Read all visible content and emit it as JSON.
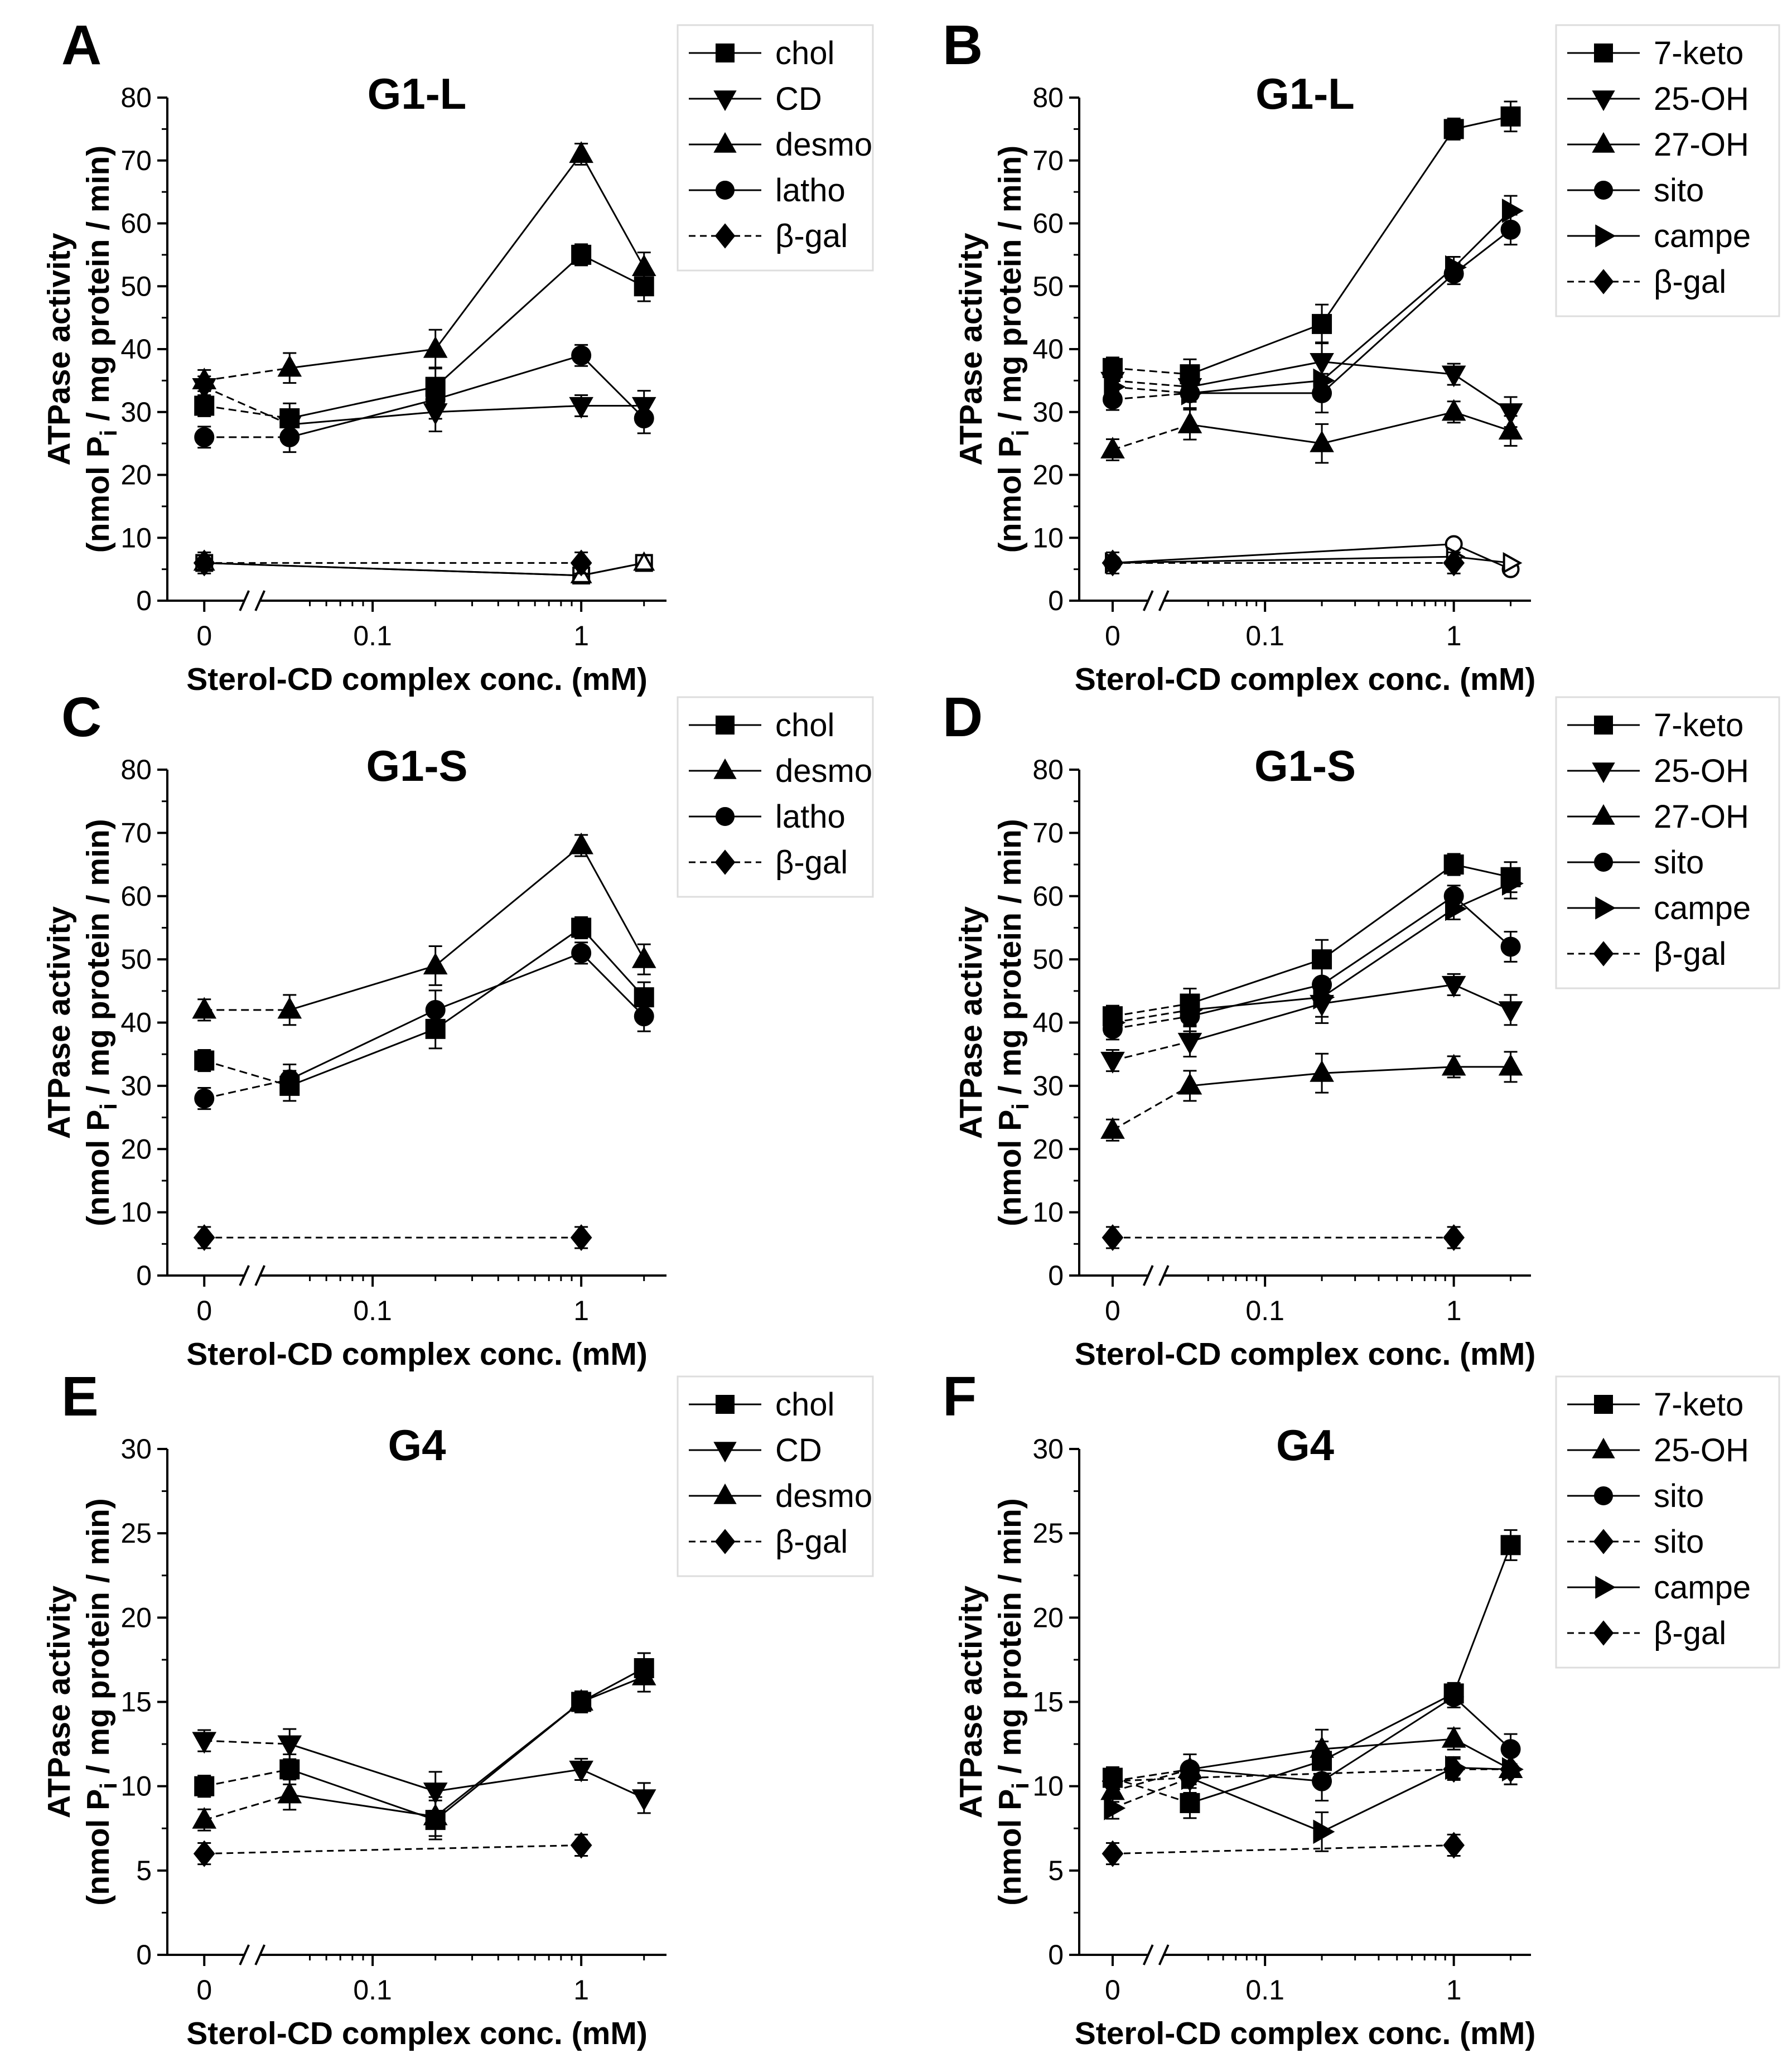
{
  "chart_data": [
    {
      "panel": "A",
      "type": "line",
      "title": "G1-L",
      "xlabel": "Sterol-CD complex  conc. (mM)",
      "ylabel_line1": "ATPase activity",
      "ylabel_line2a": "(nmol P",
      "ylabel_sub": "i",
      "ylabel_line2b": " / mg protein / min)",
      "x_scale": "log with axis break; 0 plotted left of break",
      "x": [
        0,
        0.04,
        0.2,
        1,
        2
      ],
      "x_ticks": [
        "0",
        "0.1",
        "1"
      ],
      "ylim": [
        0,
        80
      ],
      "y_ticks": [
        "0",
        "10",
        "20",
        "30",
        "40",
        "50",
        "60",
        "70",
        "80"
      ],
      "series": [
        {
          "name": "chol",
          "marker": "square",
          "values": [
            31,
            29,
            34,
            55,
            50
          ],
          "dash_first": true
        },
        {
          "name": "CD",
          "marker": "triangle-down",
          "values": [
            34,
            28,
            30,
            31,
            31
          ],
          "dash_first": true
        },
        {
          "name": "desmo",
          "marker": "triangle-up",
          "values": [
            35,
            37,
            40,
            71,
            53
          ],
          "dash_first": true
        },
        {
          "name": "latho",
          "marker": "circle",
          "values": [
            26,
            26,
            32,
            39,
            29
          ],
          "dash_first": true
        },
        {
          "name": "β-gal",
          "marker": "diamond",
          "values": [
            6,
            null,
            null,
            6,
            null
          ],
          "dashed": true
        }
      ],
      "open_values": [
        {
          "marker": "square",
          "values": [
            6,
            null,
            null,
            4,
            6
          ]
        },
        {
          "marker": "triangle-up",
          "values": [
            6,
            null,
            null,
            4,
            6
          ]
        }
      ]
    },
    {
      "panel": "B",
      "type": "line",
      "title": "G1-L",
      "xlabel": "Sterol-CD complex  conc. (mM)",
      "ylabel_line1": "ATPase activity",
      "ylabel_line2a": "(nmol P",
      "ylabel_sub": "i",
      "ylabel_line2b": " / mg protein / min)",
      "x": [
        0,
        0.04,
        0.2,
        1,
        2
      ],
      "x_ticks": [
        "0",
        "0.1",
        "1"
      ],
      "ylim": [
        0,
        80
      ],
      "y_ticks": [
        "0",
        "10",
        "20",
        "30",
        "40",
        "50",
        "60",
        "70",
        "80"
      ],
      "series": [
        {
          "name": "7-keto",
          "marker": "square",
          "values": [
            37,
            36,
            44,
            75,
            77
          ],
          "dash_first": true
        },
        {
          "name": "25-OH",
          "marker": "triangle-down",
          "values": [
            35,
            34,
            38,
            36,
            30
          ],
          "dash_first": true
        },
        {
          "name": "27-OH",
          "marker": "triangle-up",
          "values": [
            24,
            28,
            25,
            30,
            27
          ],
          "dash_first": true
        },
        {
          "name": "sito",
          "marker": "circle",
          "values": [
            32,
            33,
            33,
            52,
            59
          ],
          "dash_first": true
        },
        {
          "name": "campe",
          "marker": "triangle-right",
          "values": [
            34,
            33,
            35,
            53,
            62
          ],
          "dash_first": true
        },
        {
          "name": "β-gal",
          "marker": "diamond",
          "values": [
            6,
            null,
            null,
            6,
            null
          ],
          "dashed": true
        }
      ],
      "open_values": [
        {
          "marker": "circle",
          "values": [
            6,
            null,
            null,
            9,
            5
          ]
        },
        {
          "marker": "triangle-right",
          "values": [
            6,
            null,
            null,
            7,
            6
          ]
        }
      ]
    },
    {
      "panel": "C",
      "type": "line",
      "title": "G1-S",
      "xlabel": "Sterol-CD complex  conc. (mM)",
      "ylabel_line1": "ATPase activity",
      "ylabel_line2a": "(nmol P",
      "ylabel_sub": "i",
      "ylabel_line2b": " / mg protein / min)",
      "x": [
        0,
        0.04,
        0.2,
        1,
        2
      ],
      "x_ticks": [
        "0",
        "0.1",
        "1"
      ],
      "ylim": [
        0,
        80
      ],
      "y_ticks": [
        "0",
        "10",
        "20",
        "30",
        "40",
        "50",
        "60",
        "70",
        "80"
      ],
      "series": [
        {
          "name": "chol",
          "marker": "square",
          "values": [
            34,
            30,
            39,
            55,
            44
          ],
          "dash_first": true
        },
        {
          "name": "desmo",
          "marker": "triangle-up",
          "values": [
            42,
            42,
            49,
            68,
            50
          ],
          "dash_first": true
        },
        {
          "name": "latho",
          "marker": "circle",
          "values": [
            28,
            31,
            42,
            51,
            41
          ],
          "dash_first": true
        },
        {
          "name": "β-gal",
          "marker": "diamond",
          "values": [
            6,
            null,
            null,
            6,
            null
          ],
          "dashed": true
        }
      ]
    },
    {
      "panel": "D",
      "type": "line",
      "title": "G1-S",
      "xlabel": "Sterol-CD complex  conc. (mM)",
      "ylabel_line1": "ATPase activity",
      "ylabel_line2a": "(nmol P",
      "ylabel_sub": "i",
      "ylabel_line2b": " / mg protein / min)",
      "x": [
        0,
        0.04,
        0.2,
        1,
        2
      ],
      "x_ticks": [
        "0",
        "0.1",
        "1"
      ],
      "ylim": [
        0,
        80
      ],
      "y_ticks": [
        "0",
        "10",
        "20",
        "30",
        "40",
        "50",
        "60",
        "70",
        "80"
      ],
      "series": [
        {
          "name": "7-keto",
          "marker": "square",
          "values": [
            41,
            43,
            50,
            65,
            63
          ],
          "dash_first": true
        },
        {
          "name": "25-OH",
          "marker": "triangle-down",
          "values": [
            34,
            37,
            43,
            46,
            42
          ],
          "dash_first": true
        },
        {
          "name": "27-OH",
          "marker": "triangle-up",
          "values": [
            23,
            30,
            32,
            33,
            33
          ],
          "dash_first": true
        },
        {
          "name": "sito",
          "marker": "circle",
          "values": [
            39,
            41,
            46,
            60,
            52
          ],
          "dash_first": true
        },
        {
          "name": "campe",
          "marker": "triangle-right",
          "values": [
            40,
            42,
            44,
            58,
            62
          ],
          "dash_first": true
        },
        {
          "name": "β-gal",
          "marker": "diamond",
          "values": [
            6,
            null,
            null,
            6,
            null
          ],
          "dashed": true
        }
      ]
    },
    {
      "panel": "E",
      "type": "line",
      "title": "G4",
      "xlabel": "Sterol-CD complex  conc. (mM)",
      "ylabel_line1": "ATPase activity",
      "ylabel_line2a": "(nmol P",
      "ylabel_sub": "i",
      "ylabel_line2b": " / mg protein / min)",
      "x": [
        0,
        0.04,
        0.2,
        1,
        2
      ],
      "x_ticks": [
        "0",
        "0.1",
        "1"
      ],
      "ylim": [
        0,
        30
      ],
      "y_ticks": [
        "0",
        "5",
        "10",
        "15",
        "20",
        "25",
        "30"
      ],
      "series": [
        {
          "name": "chol",
          "marker": "square",
          "values": [
            10,
            11,
            8,
            15,
            17
          ],
          "dash_first": true
        },
        {
          "name": "CD",
          "marker": "triangle-down",
          "values": [
            12.7,
            12.5,
            9.7,
            11,
            9.3
          ],
          "dash_first": true
        },
        {
          "name": "desmo",
          "marker": "triangle-up",
          "values": [
            8,
            9.5,
            8.2,
            15,
            16.5
          ],
          "dash_first": true
        },
        {
          "name": "β-gal",
          "marker": "diamond",
          "values": [
            6,
            null,
            null,
            6.5,
            null
          ],
          "dashed": true
        }
      ]
    },
    {
      "panel": "F",
      "type": "line",
      "title": "G4",
      "xlabel": "Sterol-CD complex  conc. (mM)",
      "ylabel_line1": "ATPase activity",
      "ylabel_line2a": "(nmol P",
      "ylabel_sub": "i",
      "ylabel_line2b": " / mg protein / min)",
      "x": [
        0,
        0.04,
        0.2,
        1,
        2
      ],
      "x_ticks": [
        "0",
        "0.1",
        "1"
      ],
      "ylim": [
        0,
        30
      ],
      "y_ticks": [
        "0",
        "5",
        "10",
        "15",
        "20",
        "25",
        "30"
      ],
      "series": [
        {
          "name": "7-keto",
          "marker": "square",
          "values": [
            10.5,
            9,
            11.5,
            15.5,
            24.3
          ],
          "dash_first": true
        },
        {
          "name": "25-OH",
          "marker": "triangle-up",
          "values": [
            9.7,
            11,
            12.2,
            12.8,
            11
          ],
          "dash_first": true
        },
        {
          "name": "sito",
          "marker": "circle",
          "values": [
            10.3,
            11,
            10.3,
            15.3,
            12.2
          ],
          "dash_first": true
        },
        {
          "name": "sito",
          "marker": "diamond",
          "values": [
            10.3,
            10.5,
            null,
            11,
            11
          ],
          "dashed": true
        },
        {
          "name": "campe",
          "marker": "triangle-right",
          "values": [
            8.7,
            10.5,
            7.3,
            11.1,
            11
          ],
          "dash_first": true
        },
        {
          "name": "β-gal",
          "marker": "diamond",
          "values": [
            6,
            null,
            null,
            6.5,
            null
          ],
          "dashed": true
        }
      ]
    }
  ]
}
